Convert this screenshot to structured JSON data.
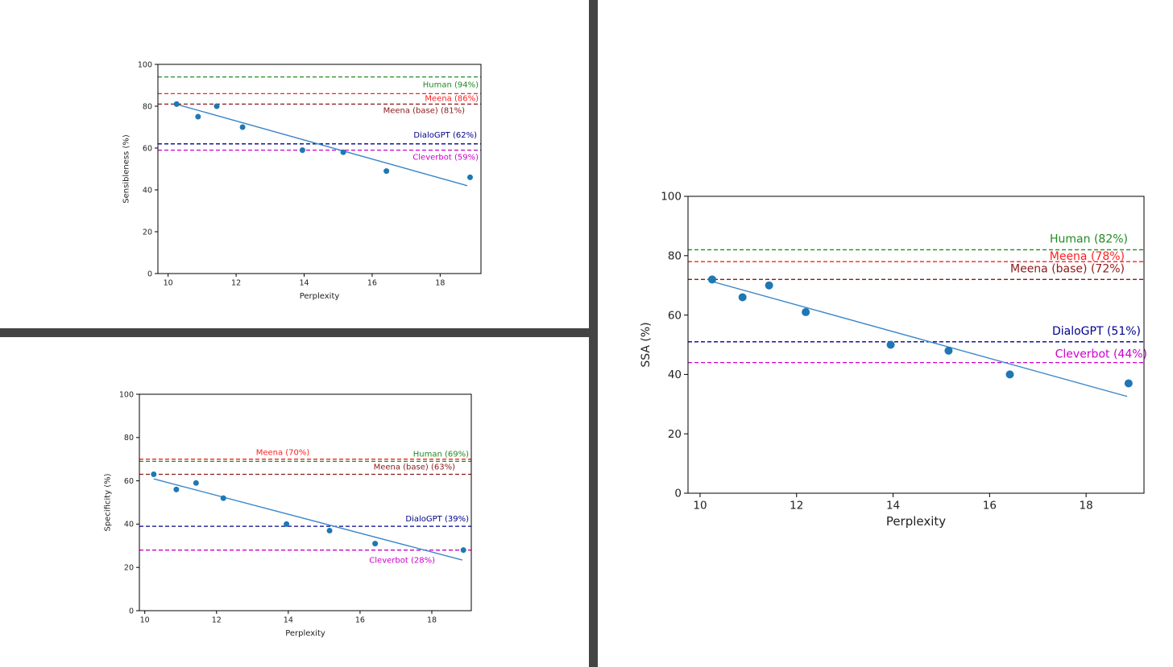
{
  "chart_data": [
    {
      "type": "scatter",
      "xlabel": "Perplexity",
      "ylabel": "Sensibleness (%)",
      "xlim": [
        9.7,
        19.2
      ],
      "ylim": [
        0,
        100
      ],
      "xticks": [
        10,
        12,
        14,
        16,
        18
      ],
      "yticks": [
        0,
        20,
        40,
        60,
        80,
        100
      ],
      "points": [
        {
          "x": 10.25,
          "y": 81
        },
        {
          "x": 10.88,
          "y": 75
        },
        {
          "x": 11.43,
          "y": 80
        },
        {
          "x": 12.19,
          "y": 70
        },
        {
          "x": 13.95,
          "y": 59
        },
        {
          "x": 15.15,
          "y": 58
        },
        {
          "x": 16.42,
          "y": 49
        },
        {
          "x": 18.88,
          "y": 46
        }
      ],
      "fit": {
        "x1": 10.25,
        "y1": 80.9,
        "x2": 18.8,
        "y2": 42.0
      },
      "reference_lines": [
        {
          "label": "Human (94%)",
          "value": 94,
          "color": "#228b22"
        },
        {
          "label": "Meena (86%)",
          "value": 86,
          "color": "#ff2020"
        },
        {
          "label": "Meena (base) (81%)",
          "value": 81,
          "color": "#8b1a1a"
        },
        {
          "label": "DialoGPT (62%)",
          "value": 62,
          "color": "#00008b"
        },
        {
          "label": "Cleverbot (59%)",
          "value": 59,
          "color": "#cc00cc"
        }
      ],
      "grid": false
    },
    {
      "type": "scatter",
      "xlabel": "Perplexity",
      "ylabel": "Specificity (%)",
      "xlim": [
        9.85,
        19.1
      ],
      "ylim": [
        0,
        100
      ],
      "xticks": [
        10,
        12,
        14,
        16,
        18
      ],
      "yticks": [
        0,
        20,
        40,
        60,
        80,
        100
      ],
      "points": [
        {
          "x": 10.25,
          "y": 63
        },
        {
          "x": 10.88,
          "y": 56
        },
        {
          "x": 11.43,
          "y": 59
        },
        {
          "x": 12.19,
          "y": 52
        },
        {
          "x": 13.95,
          "y": 40
        },
        {
          "x": 15.15,
          "y": 37
        },
        {
          "x": 16.42,
          "y": 31
        },
        {
          "x": 18.88,
          "y": 28
        }
      ],
      "fit": {
        "x1": 10.25,
        "y1": 60.9,
        "x2": 18.85,
        "y2": 23.4
      },
      "reference_lines": [
        {
          "label": "Meena (70%)",
          "value": 70,
          "color": "#ff2020"
        },
        {
          "label": "Human (69%)",
          "value": 69,
          "color": "#228b22"
        },
        {
          "label": "Meena (base) (63%)",
          "value": 63,
          "color": "#8b1a1a"
        },
        {
          "label": "DialoGPT (39%)",
          "value": 39,
          "color": "#00008b"
        },
        {
          "label": "Cleverbot (28%)",
          "value": 28,
          "color": "#cc00cc"
        }
      ],
      "grid": false
    },
    {
      "type": "scatter",
      "xlabel": "Perplexity",
      "ylabel": "SSA (%)",
      "xlim": [
        9.75,
        19.2
      ],
      "ylim": [
        0,
        100
      ],
      "xticks": [
        10,
        12,
        14,
        16,
        18
      ],
      "yticks": [
        0,
        20,
        40,
        60,
        80,
        100
      ],
      "points": [
        {
          "x": 10.25,
          "y": 72
        },
        {
          "x": 10.88,
          "y": 66
        },
        {
          "x": 11.43,
          "y": 70
        },
        {
          "x": 12.19,
          "y": 61
        },
        {
          "x": 13.95,
          "y": 50
        },
        {
          "x": 15.15,
          "y": 48
        },
        {
          "x": 16.42,
          "y": 40
        },
        {
          "x": 18.88,
          "y": 37
        }
      ],
      "fit": {
        "x1": 10.25,
        "y1": 71.3,
        "x2": 18.85,
        "y2": 32.6
      },
      "reference_lines": [
        {
          "label": "Human (82%)",
          "value": 82,
          "color": "#228b22"
        },
        {
          "label": "Meena (78%)",
          "value": 78,
          "color": "#ff2020"
        },
        {
          "label": "Meena (base) (72%)",
          "value": 72,
          "color": "#8b1a1a"
        },
        {
          "label": "DialoGPT (51%)",
          "value": 51,
          "color": "#00008b"
        },
        {
          "label": "Cleverbot (44%)",
          "value": 44,
          "color": "#cc00cc"
        }
      ],
      "grid": false
    }
  ],
  "colors": {
    "points": "#1f77b4",
    "fit_line": "#3a86c8",
    "divider": "#444444"
  }
}
